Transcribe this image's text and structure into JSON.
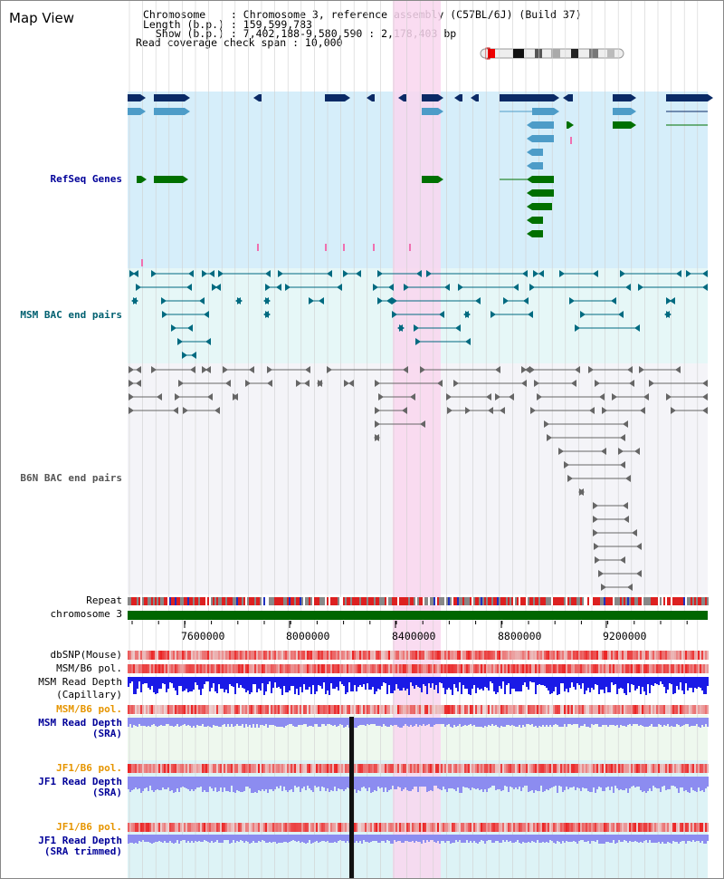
{
  "header": {
    "title": "Map View",
    "chromosome_line": "Chromosome    : Chromosome 3, reference assembly (C57BL/6J) (Build 37)",
    "length_line": "Length (b.p.) : 159,599,783",
    "show_line": "  Show (b.p.) : 7,402,188-9,580,590 : 2,178,403 bp",
    "coverage_line": "Read coverage check span : 10,000"
  },
  "tracks": {
    "refseq": "RefSeq Genes",
    "msm_bac": "MSM BAC end pairs",
    "b6n_bac": "B6N BAC end pairs",
    "repeat": "Repeat",
    "chromosome": "chromosome 3",
    "dbsnp": "dbSNP(Mouse)",
    "msm_b6_pol_1": "MSM/B6 pol.",
    "msm_read_depth_cap_1": "MSM Read Depth",
    "msm_read_depth_cap_2": "(Capillary)",
    "msm_b6_pol_2": "MSM/B6 pol.",
    "msm_read_depth_sra_1": "MSM Read Depth",
    "msm_read_depth_sra_2": "(SRA)",
    "jf1_b6_pol_1": "JF1/B6 pol.",
    "jf1_read_depth_sra_1": "JF1 Read Depth",
    "jf1_read_depth_sra_2": "(SRA)",
    "jf1_b6_pol_2": "JF1/B6 pol.",
    "jf1_read_depth_trim_1": "JF1 Read Depth",
    "jf1_read_depth_trim_2": "(SRA trimmed)"
  },
  "axis": {
    "ticks": [
      "7600000",
      "8000000",
      "8400000",
      "8800000",
      "9200000"
    ]
  },
  "colors": {
    "highlight": "#f9d6ef",
    "refseq_bg": "#d6eefa",
    "msm_bg": "#e6f7f7",
    "b6n_bg": "#f4f4f8",
    "chromosome": "#006600",
    "gene_dark": "#0a2a66",
    "gene_mid": "#4d9cc8",
    "gene_green": "#007000",
    "depth_blue": "#1a1ae6",
    "depth_light": "#8c8cf0",
    "pol_red": "#e62020"
  }
}
